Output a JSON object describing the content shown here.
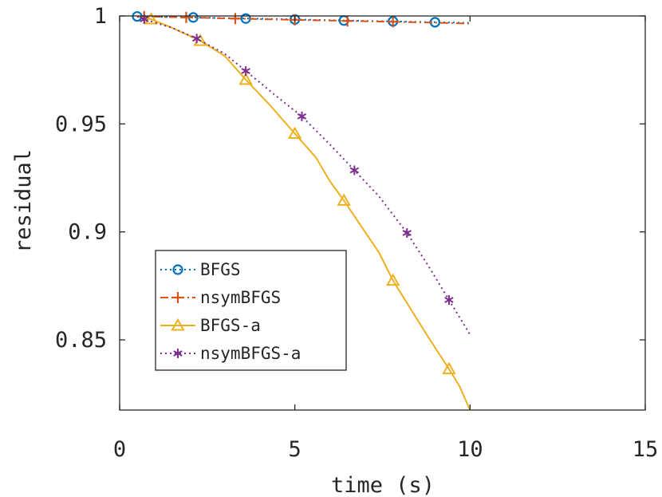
{
  "chart_data": {
    "type": "line",
    "xlabel": "time (s)",
    "ylabel": "residual",
    "xlim": [
      0,
      15
    ],
    "ylim": [
      0.8175,
      1.0
    ],
    "x_ticks": [
      0,
      5,
      10,
      15
    ],
    "x_tick_labels": [
      "0",
      "5",
      "10",
      "15"
    ],
    "y_ticks": [
      0.85,
      0.9,
      0.95,
      1
    ],
    "y_tick_labels": [
      "0.85",
      "0.9",
      "0.95",
      "1"
    ],
    "grid": false,
    "legend_position": "lower-left",
    "series": [
      {
        "name": "BFGS",
        "color": "#0072BD",
        "line_style": "dotted",
        "marker": "circle",
        "x": [
          0.5,
          2.1,
          3.6,
          5.0,
          6.4,
          7.8,
          9.0,
          10.0
        ],
        "y": [
          0.9998,
          0.9993,
          0.9988,
          0.9984,
          0.9979,
          0.9975,
          0.9971,
          0.9968
        ],
        "marker_x": [
          0.5,
          2.1,
          3.6,
          5.0,
          6.4,
          7.8,
          9.0
        ],
        "marker_y": [
          0.9998,
          0.9993,
          0.9988,
          0.9984,
          0.9979,
          0.9975,
          0.9971
        ]
      },
      {
        "name": "nsymBFGS",
        "color": "#D95319",
        "line_style": "dashdot",
        "marker": "plus",
        "x": [
          0.5,
          2.0,
          3.5,
          5.0,
          6.5,
          7.8,
          9.0,
          10.0
        ],
        "y": [
          0.9998,
          0.9993,
          0.9987,
          0.9982,
          0.9977,
          0.9973,
          0.9969,
          0.9965
        ],
        "marker_x": [
          0.7,
          1.9,
          3.3,
          5.0,
          6.5,
          7.8
        ],
        "marker_y": [
          0.9997,
          0.9993,
          0.9988,
          0.9982,
          0.9977,
          0.9973
        ]
      },
      {
        "name": "BFGS-a",
        "color": "#EDB120",
        "line_style": "solid",
        "marker": "triangle",
        "x": [
          0.5,
          0.9,
          1.5,
          2.3,
          3.0,
          3.6,
          4.3,
          5.0,
          5.6,
          6.0,
          6.4,
          6.9,
          7.4,
          7.8,
          8.3,
          8.8,
          9.4,
          9.7,
          10.0
        ],
        "y": [
          0.9997,
          0.9985,
          0.9945,
          0.9885,
          0.9815,
          0.9705,
          0.9585,
          0.9455,
          0.9345,
          0.9235,
          0.9145,
          0.9025,
          0.8905,
          0.8775,
          0.8645,
          0.8515,
          0.8365,
          0.8285,
          0.8175
        ],
        "marker_x": [
          0.9,
          2.3,
          3.6,
          5.0,
          6.4,
          7.8,
          9.4
        ],
        "marker_y": [
          0.9985,
          0.9885,
          0.9705,
          0.9455,
          0.9145,
          0.8775,
          0.8365
        ]
      },
      {
        "name": "nsymBFGS-a",
        "color": "#7E2F8E",
        "line_style": "dotted",
        "marker": "asterisk",
        "x": [
          0.5,
          0.7,
          1.5,
          2.2,
          3.0,
          3.6,
          4.5,
          5.2,
          6.0,
          6.7,
          7.4,
          8.2,
          8.8,
          9.4,
          10.0
        ],
        "y": [
          0.9997,
          0.9985,
          0.9945,
          0.9895,
          0.9825,
          0.9745,
          0.9625,
          0.9535,
          0.9405,
          0.9285,
          0.9165,
          0.8995,
          0.8845,
          0.8685,
          0.8525
        ],
        "marker_x": [
          0.7,
          2.2,
          3.6,
          5.2,
          6.7,
          8.2,
          9.4
        ],
        "marker_y": [
          0.9985,
          0.9895,
          0.9745,
          0.9535,
          0.9285,
          0.8995,
          0.8685
        ]
      }
    ]
  }
}
